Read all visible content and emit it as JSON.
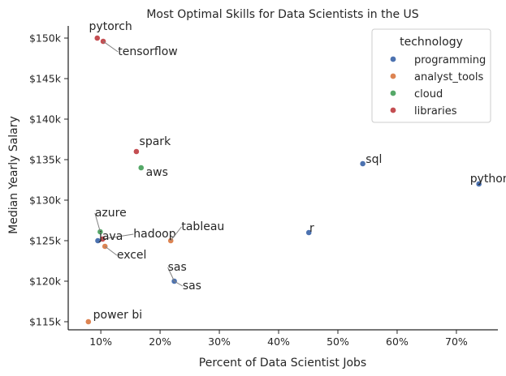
{
  "chart_data": {
    "type": "scatter",
    "title": "Most Optimal Skills for Data Scientists in the US",
    "xlabel": "Percent of Data Scientist Jobs",
    "ylabel": "Median Yearly Salary",
    "xlim": [
      4.5,
      77
    ],
    "ylim": [
      114000,
      151500
    ],
    "x_ticks": [
      10,
      20,
      30,
      40,
      50,
      60,
      70
    ],
    "x_tick_labels": [
      "10%",
      "20%",
      "30%",
      "40%",
      "50%",
      "60%",
      "70%"
    ],
    "y_ticks": [
      115000,
      120000,
      125000,
      130000,
      135000,
      140000,
      145000,
      150000
    ],
    "y_tick_labels": [
      "$115k",
      "$120k",
      "$125k",
      "$130k",
      "$135k",
      "$140k",
      "$145k",
      "$150k"
    ],
    "grid": false,
    "legend": {
      "title": "technology",
      "placement": "top-right",
      "entries": [
        {
          "name": "programming",
          "color": "#4c72b0"
        },
        {
          "name": "analyst_tools",
          "color": "#dd8452"
        },
        {
          "name": "cloud",
          "color": "#55a868"
        },
        {
          "name": "libraries",
          "color": "#c44e52"
        }
      ]
    },
    "points": [
      {
        "skill": "pytorch",
        "x": 9.4,
        "y": 150000,
        "technology": "libraries",
        "label_dx": -1.4,
        "label_dy": 1000,
        "leader": false
      },
      {
        "skill": "tensorflow",
        "x": 10.4,
        "y": 149600,
        "technology": "libraries",
        "label_dx": 2.5,
        "label_dy": -1700,
        "leader": true
      },
      {
        "skill": "spark",
        "x": 16.0,
        "y": 136000,
        "technology": "libraries",
        "label_dx": 0.5,
        "label_dy": 800,
        "leader": false
      },
      {
        "skill": "aws",
        "x": 16.8,
        "y": 134000,
        "technology": "cloud",
        "label_dx": 0.8,
        "label_dy": -1000,
        "leader": false
      },
      {
        "skill": "sql",
        "x": 54.2,
        "y": 134500,
        "technology": "programming",
        "label_dx": 0.5,
        "label_dy": 100,
        "leader": false
      },
      {
        "skill": "python",
        "x": 73.8,
        "y": 132000,
        "technology": "programming",
        "label_dx": -1.5,
        "label_dy": 200,
        "leader": false
      },
      {
        "skill": "azure",
        "x": 9.9,
        "y": 126100,
        "technology": "cloud",
        "label_dx": -0.9,
        "label_dy": 1900,
        "leader": true
      },
      {
        "skill": "hadoop",
        "x": 10.3,
        "y": 125200,
        "technology": "libraries",
        "label_dx": 5.2,
        "label_dy": 200,
        "leader": true
      },
      {
        "skill": "java",
        "x": 9.5,
        "y": 125000,
        "technology": "programming",
        "label_dx": 0.2,
        "label_dy": 100,
        "leader": false
      },
      {
        "skill": "tableau",
        "x": 21.8,
        "y": 125000,
        "technology": "analyst_tools",
        "label_dx": 1.8,
        "label_dy": 1300,
        "leader": true
      },
      {
        "skill": "r",
        "x": 45.1,
        "y": 126000,
        "technology": "programming",
        "label_dx": 0.1,
        "label_dy": 100,
        "leader": false
      },
      {
        "skill": "excel",
        "x": 10.7,
        "y": 124300,
        "technology": "analyst_tools",
        "label_dx": 2.0,
        "label_dy": -1500,
        "leader": true
      },
      {
        "skill": "sas",
        "x": 22.4,
        "y": 120000,
        "technology": "programming",
        "label_dx": -1.1,
        "label_dy": 1300,
        "leader": true
      },
      {
        "skill": "sas",
        "x": 22.4,
        "y": 120000,
        "technology": "programming",
        "label_dx": 1.4,
        "label_dy": -1000,
        "leader": true
      },
      {
        "skill": "power bi",
        "x": 7.9,
        "y": 115000,
        "technology": "analyst_tools",
        "label_dx": 0.8,
        "label_dy": 400,
        "leader": false
      }
    ]
  }
}
